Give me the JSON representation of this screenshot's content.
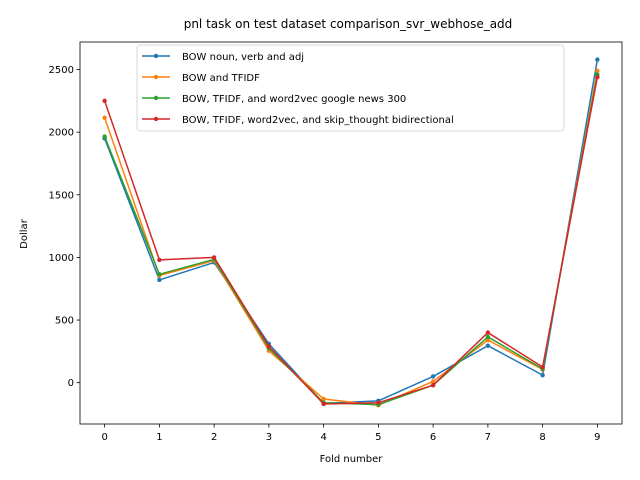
{
  "chart_data": {
    "type": "line",
    "title": "pnl task on test dataset comparison_svr_webhose_add",
    "xlabel": "Fold number",
    "ylabel": "Dollar",
    "x": [
      0,
      1,
      2,
      3,
      4,
      5,
      6,
      7,
      8,
      9
    ],
    "xlim": [
      -0.45,
      9.45
    ],
    "ylim": [
      -330,
      2720
    ],
    "xticks": [
      0,
      1,
      2,
      3,
      4,
      5,
      6,
      7,
      8,
      9
    ],
    "yticks": [
      0,
      500,
      1000,
      1500,
      2000,
      2500
    ],
    "grid": false,
    "legend_position": "upper center",
    "series": [
      {
        "name": "BOW noun, verb and adj",
        "color": "#1f77b4",
        "values": [
          1950,
          820,
          960,
          310,
          -165,
          -145,
          50,
          295,
          60,
          2580
        ]
      },
      {
        "name": "BOW and TFIDF",
        "color": "#ff7f0e",
        "values": [
          2115,
          855,
          975,
          255,
          -130,
          -180,
          10,
          340,
          105,
          2490
        ]
      },
      {
        "name": "BOW, TFIDF, and word2vec google news 300",
        "color": "#2ca02c",
        "values": [
          1965,
          865,
          985,
          275,
          -160,
          -175,
          -20,
          365,
          110,
          2460
        ]
      },
      {
        "name": "BOW, TFIDF, word2vec, and skip_thought bidirectional",
        "color": "#d62728",
        "values": [
          2250,
          980,
          1000,
          290,
          -170,
          -160,
          -20,
          400,
          125,
          2440
        ]
      }
    ]
  }
}
